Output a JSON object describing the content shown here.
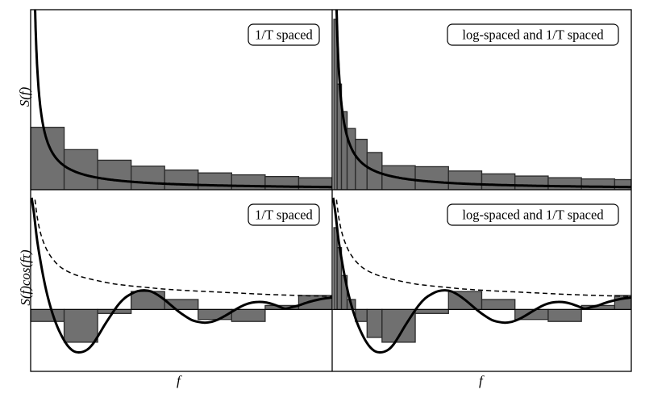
{
  "figure": {
    "ylabels": [
      "S(f)",
      "S(f)cos(fτ)"
    ],
    "xlabel": "f"
  },
  "chart_data": [
    {
      "type": "bar",
      "title": "1/T spaced",
      "ylabel": "S(f)",
      "xlabel": "",
      "xlim": [
        0,
        9
      ],
      "ylim": [
        0,
        7.5
      ],
      "bins": [
        [
          0,
          1
        ],
        [
          1,
          2
        ],
        [
          2,
          3
        ],
        [
          3,
          4
        ],
        [
          4,
          5
        ],
        [
          5,
          6
        ],
        [
          6,
          7
        ],
        [
          7,
          8
        ],
        [
          8,
          9
        ]
      ],
      "values": [
        2.6,
        1.67,
        1.23,
        0.98,
        0.82,
        0.7,
        0.62,
        0.55,
        0.5
      ],
      "curve": {
        "function": "1/f",
        "style": "solid",
        "f_start": 0.11,
        "f_end": 9
      }
    },
    {
      "type": "bar",
      "title": "log-spaced and 1/T spaced",
      "ylabel": "",
      "xlabel": "",
      "xlim": [
        0,
        9
      ],
      "ylim": [
        0,
        7.5
      ],
      "bins": [
        [
          0.05,
          0.15
        ],
        [
          0.15,
          0.28
        ],
        [
          0.28,
          0.45
        ],
        [
          0.45,
          0.7
        ],
        [
          0.7,
          1.05
        ],
        [
          1.05,
          1.5
        ],
        [
          1.5,
          2.5
        ],
        [
          2.5,
          3.5
        ],
        [
          3.5,
          4.5
        ],
        [
          4.5,
          5.5
        ],
        [
          5.5,
          6.5
        ],
        [
          6.5,
          7.5
        ],
        [
          7.5,
          8.5
        ],
        [
          8.5,
          9
        ]
      ],
      "values": [
        7.1,
        4.4,
        3.25,
        2.55,
        2.1,
        1.55,
        1.0,
        0.96,
        0.78,
        0.66,
        0.57,
        0.5,
        0.45,
        0.42
      ],
      "curve": {
        "function": "1/f",
        "style": "solid",
        "f_start": 0.11,
        "f_end": 9
      }
    },
    {
      "type": "bar",
      "title": "1/T spaced",
      "ylabel": "S(f)cos(fτ)",
      "xlabel": "f",
      "xlim": [
        0,
        9
      ],
      "ylim": [
        -1.55,
        3.0
      ],
      "bins": [
        [
          0,
          1
        ],
        [
          1,
          2
        ],
        [
          2,
          3
        ],
        [
          3,
          4
        ],
        [
          4,
          5
        ],
        [
          5,
          6
        ],
        [
          6,
          7
        ],
        [
          7,
          8
        ],
        [
          8,
          9
        ]
      ],
      "values": [
        -0.3,
        -0.82,
        -0.1,
        0.45,
        0.25,
        -0.25,
        -0.3,
        0.1,
        0.35
      ],
      "curves": [
        {
          "function": "S(f)·cos(fτ)",
          "style": "solid",
          "x": [
            0.03,
            0.1,
            0.2,
            0.35,
            0.5,
            0.7,
            0.9,
            1.1,
            1.3,
            1.5,
            1.7,
            1.85,
            2.0,
            2.2,
            2.4,
            2.6,
            2.8,
            3.0,
            3.2,
            3.4,
            3.6,
            3.8,
            4.0,
            4.2,
            4.4,
            4.6,
            4.8,
            5.0,
            5.2,
            5.4,
            5.6,
            5.8,
            6.0,
            6.2,
            6.4,
            6.6,
            6.8,
            7.0,
            7.2,
            7.4,
            7.6,
            7.8,
            8.0,
            8.2,
            8.4,
            8.6,
            8.8,
            9.0
          ],
          "y": [
            2.8,
            2.4,
            1.7,
            0.95,
            0.35,
            -0.22,
            -0.62,
            -0.9,
            -1.05,
            -1.07,
            -1.0,
            -0.87,
            -0.68,
            -0.4,
            -0.14,
            0.1,
            0.28,
            0.39,
            0.46,
            0.48,
            0.45,
            0.36,
            0.24,
            0.1,
            -0.04,
            -0.16,
            -0.26,
            -0.31,
            -0.33,
            -0.31,
            -0.25,
            -0.16,
            -0.06,
            0.04,
            0.12,
            0.17,
            0.19,
            0.18,
            0.14,
            0.08,
            0.02,
            0.06,
            0.1,
            0.16,
            0.21,
            0.25,
            0.28,
            0.3
          ]
        },
        {
          "function": "envelope S(f)",
          "style": "dashed",
          "x": [
            0.13,
            0.2,
            0.3,
            0.45,
            0.6,
            0.8,
            1.0,
            1.3,
            1.6,
            2.0,
            2.5,
            3.0,
            3.5,
            4.0,
            5.0,
            6.0,
            7.0,
            8.0,
            9.0
          ],
          "y": [
            2.75,
            2.3,
            1.9,
            1.55,
            1.33,
            1.13,
            1.0,
            0.88,
            0.8,
            0.72,
            0.64,
            0.59,
            0.55,
            0.51,
            0.46,
            0.42,
            0.38,
            0.35,
            0.33
          ]
        }
      ]
    },
    {
      "type": "bar",
      "title": "log-spaced and 1/T spaced",
      "ylabel": "",
      "xlabel": "f",
      "xlim": [
        0,
        9
      ],
      "ylim": [
        -1.55,
        3.0
      ],
      "bins": [
        [
          0.05,
          0.15
        ],
        [
          0.15,
          0.28
        ],
        [
          0.28,
          0.45
        ],
        [
          0.45,
          0.7
        ],
        [
          0.7,
          1.05
        ],
        [
          1.05,
          1.5
        ],
        [
          1.5,
          2.5
        ],
        [
          2.5,
          3.5
        ],
        [
          3.5,
          4.5
        ],
        [
          4.5,
          5.5
        ],
        [
          5.5,
          6.5
        ],
        [
          6.5,
          7.5
        ],
        [
          7.5,
          8.5
        ],
        [
          8.5,
          9
        ]
      ],
      "values": [
        2.05,
        1.55,
        0.85,
        0.25,
        -0.3,
        -0.7,
        -0.82,
        -0.1,
        0.45,
        0.25,
        -0.25,
        -0.3,
        0.1,
        0.35
      ],
      "curves": [
        {
          "function": "S(f)·cos(fτ)",
          "style": "solid",
          "x": [
            0.03,
            0.1,
            0.2,
            0.35,
            0.5,
            0.7,
            0.9,
            1.1,
            1.3,
            1.5,
            1.7,
            1.85,
            2.0,
            2.2,
            2.4,
            2.6,
            2.8,
            3.0,
            3.2,
            3.4,
            3.6,
            3.8,
            4.0,
            4.2,
            4.4,
            4.6,
            4.8,
            5.0,
            5.2,
            5.4,
            5.6,
            5.8,
            6.0,
            6.2,
            6.4,
            6.6,
            6.8,
            7.0,
            7.2,
            7.4,
            7.6,
            7.8,
            8.0,
            8.2,
            8.4,
            8.6,
            8.8,
            9.0
          ],
          "y": [
            2.8,
            2.4,
            1.7,
            0.95,
            0.35,
            -0.22,
            -0.62,
            -0.9,
            -1.05,
            -1.07,
            -1.0,
            -0.87,
            -0.68,
            -0.4,
            -0.14,
            0.1,
            0.28,
            0.39,
            0.46,
            0.48,
            0.45,
            0.36,
            0.24,
            0.1,
            -0.04,
            -0.16,
            -0.26,
            -0.31,
            -0.33,
            -0.31,
            -0.25,
            -0.16,
            -0.06,
            0.04,
            0.12,
            0.17,
            0.19,
            0.18,
            0.14,
            0.08,
            0.02,
            0.06,
            0.1,
            0.16,
            0.21,
            0.25,
            0.28,
            0.3
          ]
        },
        {
          "function": "envelope S(f)",
          "style": "dashed",
          "x": [
            0.13,
            0.2,
            0.3,
            0.45,
            0.6,
            0.8,
            1.0,
            1.3,
            1.6,
            2.0,
            2.5,
            3.0,
            3.5,
            4.0,
            5.0,
            6.0,
            7.0,
            8.0,
            9.0
          ],
          "y": [
            2.75,
            2.3,
            1.9,
            1.55,
            1.33,
            1.13,
            1.0,
            0.88,
            0.8,
            0.72,
            0.64,
            0.59,
            0.55,
            0.51,
            0.46,
            0.42,
            0.38,
            0.35,
            0.33
          ]
        }
      ]
    }
  ],
  "colors": {
    "bar_fill": "#707070",
    "bar_stroke": "#2a2a2a",
    "curve": "#000000"
  }
}
